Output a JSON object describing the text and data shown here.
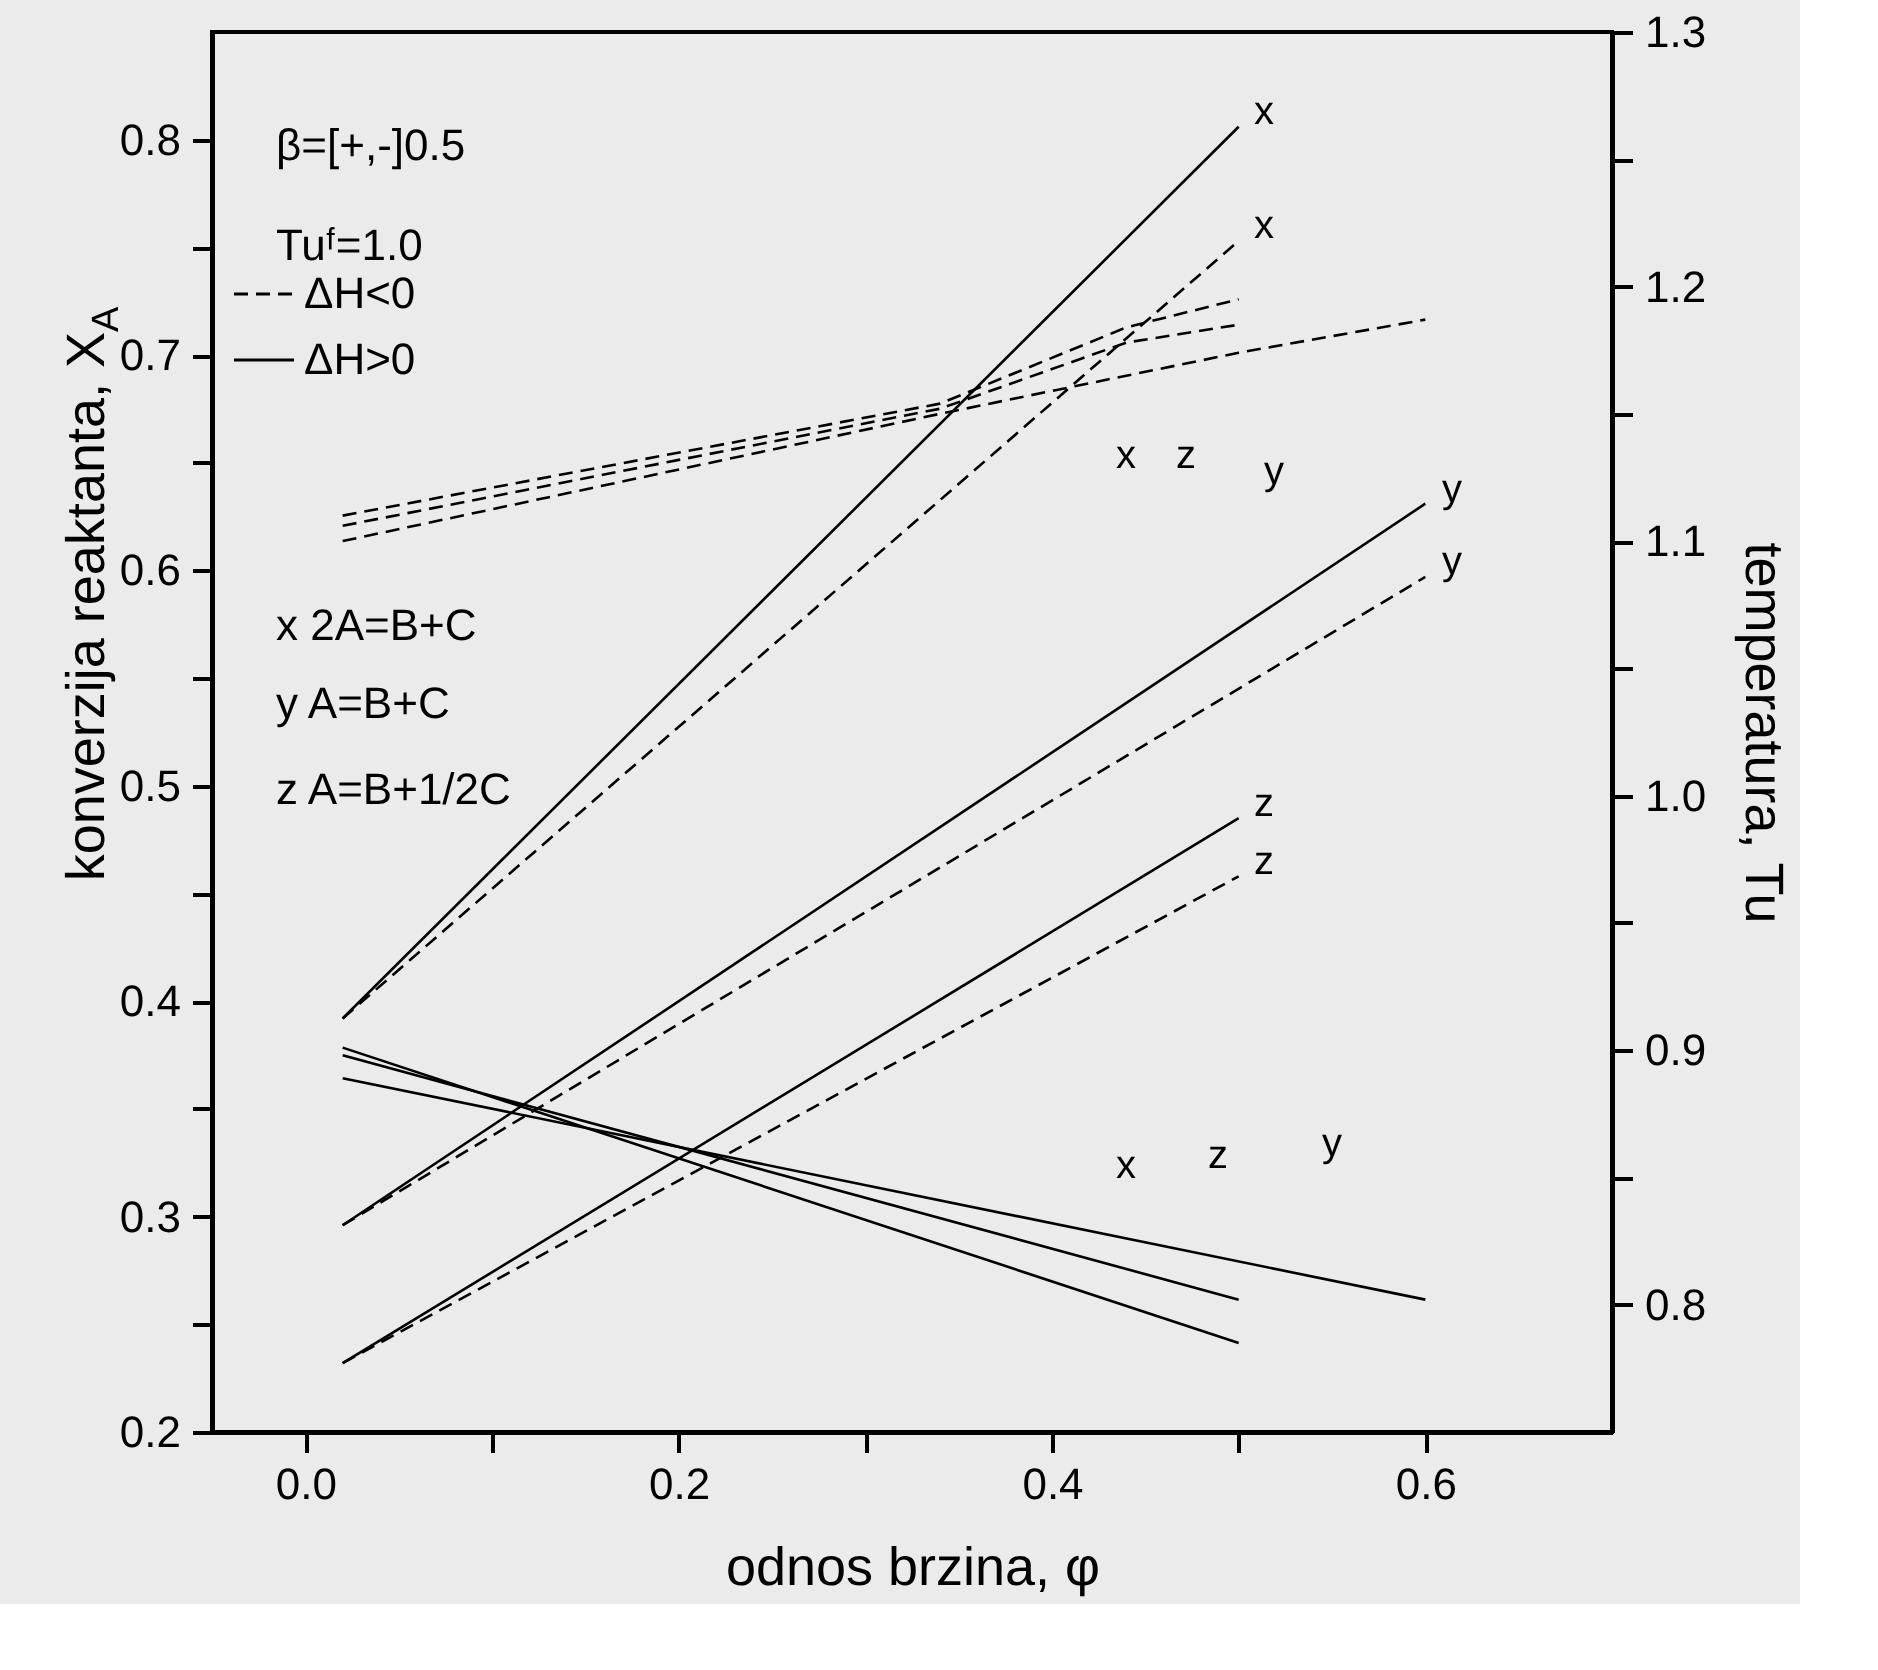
{
  "chart_data": {
    "type": "line",
    "xlabel": "odnos brzina, φ",
    "ylabel": "konverzija reaktanta, X$_{A}$",
    "y2label": "temperatura, Tu",
    "xlim": [
      -0.05,
      0.7
    ],
    "xticks": [
      {
        "value": 0,
        "label": "0.0"
      },
      {
        "value": 0.1,
        "label": null
      },
      0.2,
      {
        "value": 0.3,
        "label": null
      },
      0.4,
      {
        "value": 0.5,
        "label": null
      },
      0.6
    ],
    "ylim": [
      0.2,
      0.85
    ],
    "yticks": [
      0.2,
      {
        "value": 0.25,
        "label": null
      },
      0.3,
      {
        "value": 0.35,
        "label": null
      },
      0.4,
      {
        "value": 0.45,
        "label": null
      },
      0.5,
      {
        "value": 0.55,
        "label": null
      },
      0.6,
      {
        "value": 0.65,
        "label": null
      },
      0.7,
      {
        "value": 0.75,
        "label": null
      },
      0.8
    ],
    "y2lim": [
      0.75,
      1.3
    ],
    "y2ticks": [
      0.8,
      {
        "value": 0.85,
        "label": null
      },
      0.9,
      {
        "value": 0.95,
        "label": null
      },
      {
        "value": 1.0,
        "label": "1.0"
      },
      {
        "value": 1.05,
        "label": null
      },
      1.1,
      {
        "value": 1.15,
        "label": null
      },
      1.2,
      {
        "value": 1.25,
        "label": null
      },
      1.3
    ],
    "grid": false,
    "legend": "top left",
    "marker": "none",
    "series": [
      {
        "name": "ΔH<0",
        "axis": "y",
        "line_style": "dashed",
        "color": "#000000",
        "x": [
          0.02,
          0.5
        ],
        "values": [
          0.392,
          0.753
        ]
      },
      {
        "name": "ΔH>0",
        "axis": "y",
        "line_style": "solid",
        "color": "#000000",
        "x": [
          0.02,
          0.5
        ],
        "values": [
          0.392,
          0.806
        ]
      },
      {
        "axis": "y",
        "line_style": "solid",
        "color": "#000000",
        "x": [
          0.02,
          0.6
        ],
        "values": [
          0.296,
          0.631
        ]
      },
      {
        "axis": "y",
        "line_style": "dashed",
        "color": "#000000",
        "x": [
          0.02,
          0.6
        ],
        "values": [
          0.296,
          0.597
        ]
      },
      {
        "axis": "y",
        "line_style": "solid",
        "color": "#000000",
        "x": [
          0.02,
          0.5
        ],
        "values": [
          0.232,
          0.485
        ]
      },
      {
        "axis": "y",
        "line_style": "dashed",
        "color": "#000000",
        "x": [
          0.02,
          0.5
        ],
        "values": [
          0.232,
          0.458
        ]
      },
      {
        "axis": "y2",
        "line_style": "dashed",
        "color": "#000000",
        "x": [
          0.02,
          0.34,
          0.44,
          0.5
        ],
        "values": [
          1.11,
          1.154,
          1.184,
          1.195
        ]
      },
      {
        "axis": "y2",
        "line_style": "dashed",
        "color": "#000000",
        "x": [
          0.02,
          0.34,
          0.44,
          0.5
        ],
        "values": [
          1.106,
          1.152,
          1.178,
          1.185
        ]
      },
      {
        "axis": "y2",
        "line_style": "dashed",
        "color": "#000000",
        "x": [
          0.02,
          0.34,
          0.5,
          0.6
        ],
        "values": [
          1.1,
          1.15,
          1.174,
          1.187
        ]
      },
      {
        "axis": "y2",
        "line_style": "solid",
        "color": "#000000",
        "x": [
          0.02,
          0.5
        ],
        "values": [
          0.901,
          0.785
        ]
      },
      {
        "axis": "y2",
        "line_style": "solid",
        "color": "#000000",
        "x": [
          0.02,
          0.5
        ],
        "values": [
          0.898,
          0.802
        ]
      },
      {
        "axis": "y2",
        "line_style": "solid",
        "color": "#000000",
        "x": [
          0.02,
          0.6
        ],
        "values": [
          0.889,
          0.802
        ]
      }
    ],
    "annotations": [
      "β=[+,-]0.5",
      "Tuᶠ=1.0",
      "x  2A=B+C",
      "y  A=B+C",
      "z  A=B+1/2C",
      "x",
      "z",
      "y",
      "x",
      "z",
      "y",
      "x",
      "x",
      "y",
      "y",
      "z",
      "z"
    ]
  }
}
